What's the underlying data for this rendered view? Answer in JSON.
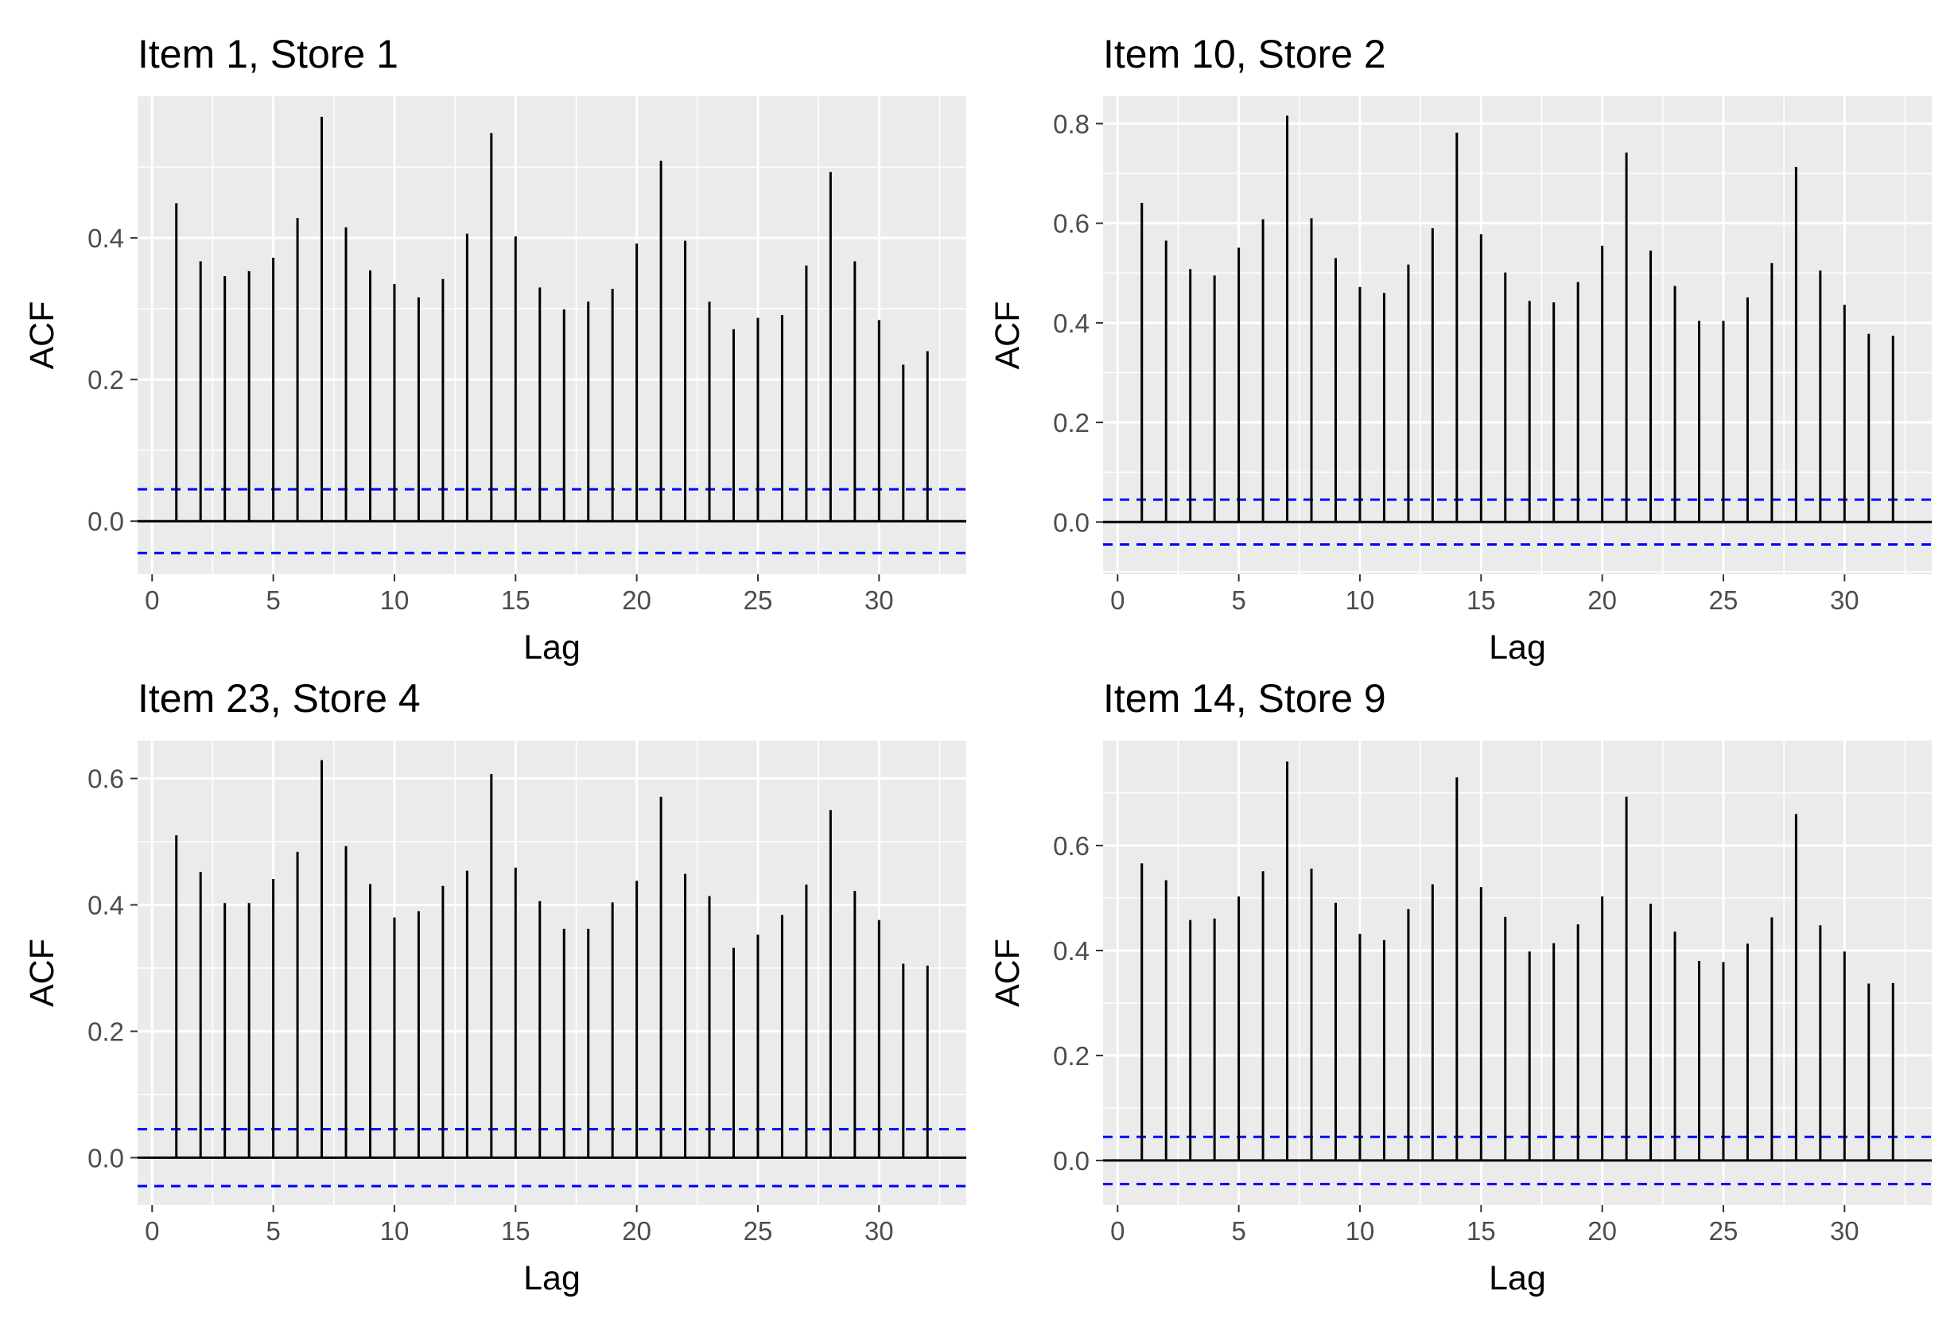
{
  "chart_data": [
    {
      "type": "bar",
      "title": "Item 1, Store 1",
      "xlabel": "Lag",
      "ylabel": "ACF",
      "xlim": [
        -0.6,
        33.6
      ],
      "ylim": [
        -0.075,
        0.6
      ],
      "xticks": [
        0,
        5,
        10,
        15,
        20,
        25,
        30
      ],
      "xtick_labels": [
        "0",
        "5",
        "10",
        "15",
        "20",
        "25",
        "30"
      ],
      "yticks": [
        0.0,
        0.2,
        0.4
      ],
      "ytick_labels": [
        "0.0",
        "0.2",
        "0.4"
      ],
      "x": [
        1,
        2,
        3,
        4,
        5,
        6,
        7,
        8,
        9,
        10,
        11,
        12,
        13,
        14,
        15,
        16,
        17,
        18,
        19,
        20,
        21,
        22,
        23,
        24,
        25,
        26,
        27,
        28,
        29,
        30,
        31,
        32
      ],
      "values": [
        0.449,
        0.367,
        0.346,
        0.353,
        0.372,
        0.428,
        0.571,
        0.415,
        0.354,
        0.335,
        0.316,
        0.342,
        0.406,
        0.548,
        0.402,
        0.33,
        0.299,
        0.31,
        0.328,
        0.392,
        0.509,
        0.396,
        0.31,
        0.271,
        0.287,
        0.291,
        0.361,
        0.493,
        0.367,
        0.284,
        0.221,
        0.24
      ],
      "confidence_band": [
        -0.045,
        0.045
      ],
      "grid": true
    },
    {
      "type": "bar",
      "title": "Item 10, Store 2",
      "xlabel": "Lag",
      "ylabel": "ACF",
      "xlim": [
        -0.6,
        33.6
      ],
      "ylim": [
        -0.105,
        0.855
      ],
      "xticks": [
        0,
        5,
        10,
        15,
        20,
        25,
        30
      ],
      "xtick_labels": [
        "0",
        "5",
        "10",
        "15",
        "20",
        "25",
        "30"
      ],
      "yticks": [
        0.0,
        0.2,
        0.4,
        0.6,
        0.8
      ],
      "ytick_labels": [
        "0.0",
        "0.2",
        "0.4",
        "0.6",
        "0.8"
      ],
      "x": [
        1,
        2,
        3,
        4,
        5,
        6,
        7,
        8,
        9,
        10,
        11,
        12,
        13,
        14,
        15,
        16,
        17,
        18,
        19,
        20,
        21,
        22,
        23,
        24,
        25,
        26,
        27,
        28,
        29,
        30,
        31,
        32
      ],
      "values": [
        0.641,
        0.565,
        0.508,
        0.495,
        0.551,
        0.608,
        0.816,
        0.61,
        0.53,
        0.472,
        0.46,
        0.517,
        0.59,
        0.782,
        0.578,
        0.501,
        0.444,
        0.441,
        0.482,
        0.555,
        0.742,
        0.545,
        0.474,
        0.404,
        0.404,
        0.451,
        0.52,
        0.713,
        0.505,
        0.436,
        0.378,
        0.374
      ],
      "confidence_band": [
        -0.045,
        0.045
      ],
      "grid": true
    },
    {
      "type": "bar",
      "title": "Item 23, Store 4",
      "xlabel": "Lag",
      "ylabel": "ACF",
      "xlim": [
        -0.6,
        33.6
      ],
      "ylim": [
        -0.075,
        0.66
      ],
      "xticks": [
        0,
        5,
        10,
        15,
        20,
        25,
        30
      ],
      "xtick_labels": [
        "0",
        "5",
        "10",
        "15",
        "20",
        "25",
        "30"
      ],
      "yticks": [
        0.0,
        0.2,
        0.4,
        0.6
      ],
      "ytick_labels": [
        "0.0",
        "0.2",
        "0.4",
        "0.6"
      ],
      "x": [
        1,
        2,
        3,
        4,
        5,
        6,
        7,
        8,
        9,
        10,
        11,
        12,
        13,
        14,
        15,
        16,
        17,
        18,
        19,
        20,
        21,
        22,
        23,
        24,
        25,
        26,
        27,
        28,
        29,
        30,
        31,
        32
      ],
      "values": [
        0.51,
        0.452,
        0.403,
        0.403,
        0.441,
        0.484,
        0.629,
        0.493,
        0.433,
        0.38,
        0.39,
        0.43,
        0.454,
        0.607,
        0.459,
        0.406,
        0.362,
        0.362,
        0.404,
        0.438,
        0.571,
        0.449,
        0.414,
        0.332,
        0.353,
        0.384,
        0.432,
        0.55,
        0.422,
        0.376,
        0.307,
        0.304
      ],
      "confidence_band": [
        -0.045,
        0.045
      ],
      "grid": true
    },
    {
      "type": "bar",
      "title": "Item 14, Store 9",
      "xlabel": "Lag",
      "ylabel": "ACF",
      "xlim": [
        -0.6,
        33.6
      ],
      "ylim": [
        -0.085,
        0.8
      ],
      "xticks": [
        0,
        5,
        10,
        15,
        20,
        25,
        30
      ],
      "xtick_labels": [
        "0",
        "5",
        "10",
        "15",
        "20",
        "25",
        "30"
      ],
      "yticks": [
        0.0,
        0.2,
        0.4,
        0.6
      ],
      "ytick_labels": [
        "0.0",
        "0.2",
        "0.4",
        "0.6"
      ],
      "x": [
        1,
        2,
        3,
        4,
        5,
        6,
        7,
        8,
        9,
        10,
        11,
        12,
        13,
        14,
        15,
        16,
        17,
        18,
        19,
        20,
        21,
        22,
        23,
        24,
        25,
        26,
        27,
        28,
        29,
        30,
        31,
        32
      ],
      "values": [
        0.566,
        0.534,
        0.458,
        0.461,
        0.503,
        0.551,
        0.76,
        0.556,
        0.491,
        0.432,
        0.42,
        0.479,
        0.526,
        0.73,
        0.521,
        0.464,
        0.398,
        0.414,
        0.45,
        0.503,
        0.693,
        0.489,
        0.436,
        0.38,
        0.378,
        0.413,
        0.463,
        0.66,
        0.448,
        0.398,
        0.337,
        0.338
      ],
      "confidence_band": [
        -0.045,
        0.045
      ],
      "grid": true
    }
  ],
  "colors": {
    "panel_background": "#ebebeb",
    "grid_line": "#ffffff",
    "bar": "#000000",
    "zero_line": "#000000",
    "confidence_line": "#0000ff",
    "tick_text": "#4d4d4d",
    "title_text": "#000000"
  }
}
